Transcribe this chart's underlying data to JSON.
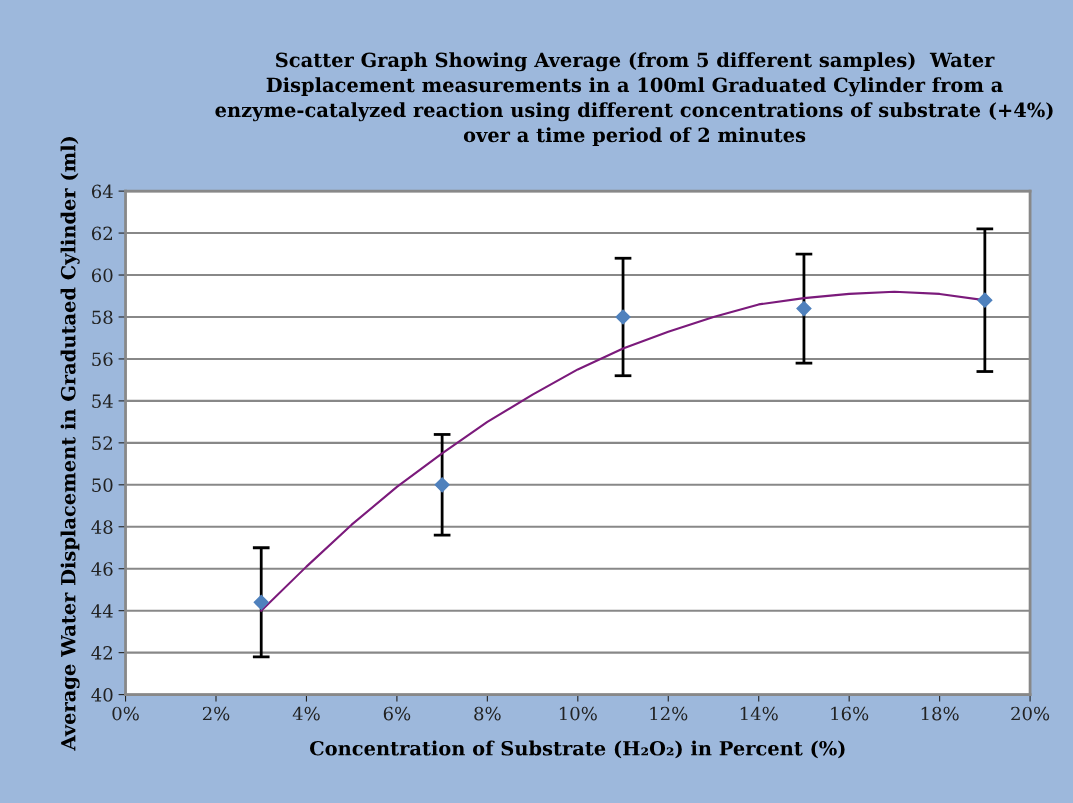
{
  "chart_data": {
    "type": "scatter",
    "title": "Scatter Graph Showing Average (from 5 different samples)  Water Displacement measurements in a 100ml Graduated Cylinder from a enzyme-catalyzed reaction using different concentrations of substrate (+4%) over a time period of 2 minutes",
    "xlabel": "Concentration of Substrate (H₂O₂) in Percent (%)",
    "ylabel": "Average Water Displacement in Gradutaed Cylinder (ml)",
    "x": [
      3,
      7,
      11,
      15,
      19
    ],
    "series": [
      {
        "color": "#4f81bd",
        "marker": "diamond",
        "values": [
          44.4,
          50.0,
          58.0,
          58.4,
          58.8
        ],
        "errors": [
          [
            41.8,
            47.0
          ],
          [
            47.6,
            52.4
          ],
          [
            55.2,
            60.8
          ],
          [
            55.8,
            61.0
          ],
          [
            55.4,
            62.2
          ]
        ]
      },
      {
        "type": "line",
        "color": "#7b1a7b",
        "marker": "none",
        "line_style": "solid",
        "x": [
          3,
          4,
          5,
          6,
          7,
          8,
          9,
          10,
          11,
          12,
          13,
          14,
          15,
          16,
          17,
          18,
          19
        ],
        "values": [
          44.0,
          46.1,
          48.1,
          49.9,
          51.5,
          53.0,
          54.3,
          55.5,
          56.5,
          57.3,
          58.0,
          58.6,
          58.9,
          59.1,
          59.2,
          59.1,
          58.8
        ]
      }
    ],
    "xlim": [
      0,
      20
    ],
    "xticks": [
      {
        "value": 0,
        "label": "0%"
      },
      {
        "value": 2,
        "label": "2%"
      },
      {
        "value": 4,
        "label": "4%"
      },
      {
        "value": 6,
        "label": "6%"
      },
      {
        "value": 8,
        "label": "8%"
      },
      {
        "value": 10,
        "label": "10%"
      },
      {
        "value": 12,
        "label": "12%"
      },
      {
        "value": 14,
        "label": "14%"
      },
      {
        "value": 16,
        "label": "16%"
      },
      {
        "value": 18,
        "label": "18%"
      },
      {
        "value": 20,
        "label": "20%"
      }
    ],
    "ylim": [
      40,
      64
    ],
    "yticks": [
      40,
      42,
      44,
      46,
      48,
      50,
      52,
      54,
      56,
      58,
      60,
      62,
      64
    ],
    "grid": "y",
    "legend": false
  }
}
